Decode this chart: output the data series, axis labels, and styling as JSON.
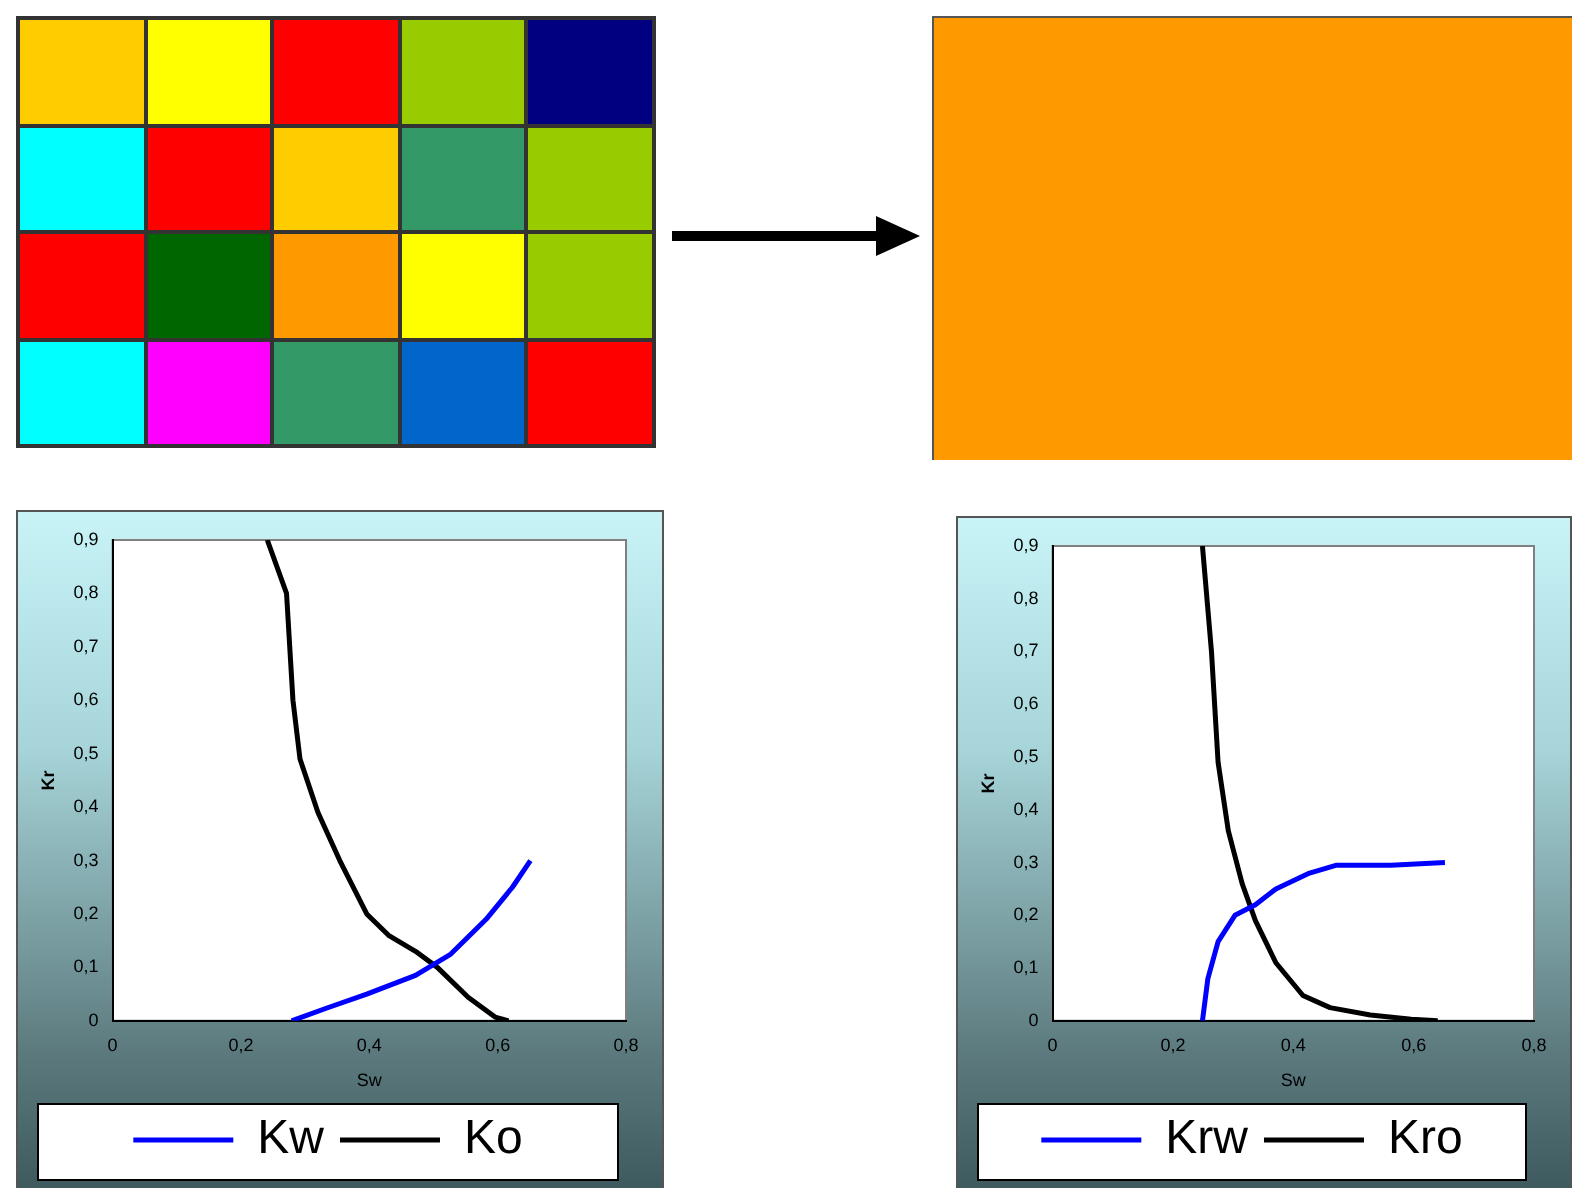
{
  "chart_data": [
    {
      "type": "line",
      "xlabel": "Sw",
      "ylabel": "Kr",
      "xlim": [
        0,
        0.8
      ],
      "ylim": [
        0,
        0.9
      ],
      "xticks": [
        {
          "value": 0,
          "label": "0"
        },
        {
          "value": 0.2,
          "label": "0,2"
        },
        {
          "value": 0.4,
          "label": "0,4"
        },
        {
          "value": 0.6,
          "label": "0,6"
        },
        {
          "value": 0.8,
          "label": "0,8"
        }
      ],
      "yticks": [
        {
          "value": 0,
          "label": "0"
        },
        {
          "value": 0.1,
          "label": "0,1"
        },
        {
          "value": 0.2,
          "label": "0,2"
        },
        {
          "value": 0.3,
          "label": "0,3"
        },
        {
          "value": 0.4,
          "label": "0,4"
        },
        {
          "value": 0.5,
          "label": "0,5"
        },
        {
          "value": 0.6,
          "label": "0,6"
        },
        {
          "value": 0.7,
          "label": "0,7"
        },
        {
          "value": 0.8,
          "label": "0,8"
        },
        {
          "value": 0.9,
          "label": "0,9"
        }
      ],
      "grid": false,
      "legend": "bottom",
      "marker": "none",
      "line_style": "solid",
      "series": [
        {
          "name": "Kw",
          "color": "#0000ff",
          "x": [
            0.279,
            0.334,
            0.396,
            0.472,
            0.527,
            0.582,
            0.623,
            0.651
          ],
          "values": [
            0,
            0.024,
            0.05,
            0.085,
            0.125,
            0.19,
            0.25,
            0.3
          ]
        },
        {
          "name": "Ko",
          "color": "#000000",
          "x": [
            0.241,
            0.271,
            0.281,
            0.292,
            0.32,
            0.354,
            0.396,
            0.43,
            0.472,
            0.506,
            0.554,
            0.596,
            0.617
          ],
          "values": [
            0.9,
            0.8,
            0.6,
            0.49,
            0.39,
            0.3,
            0.2,
            0.16,
            0.13,
            0.1,
            0.044,
            0.007,
            0
          ]
        }
      ]
    },
    {
      "type": "line",
      "xlabel": "Sw",
      "ylabel": "Kr",
      "xlim": [
        0,
        0.8
      ],
      "ylim": [
        0,
        0.9
      ],
      "xticks": [
        {
          "value": 0,
          "label": "0"
        },
        {
          "value": 0.2,
          "label": "0,2"
        },
        {
          "value": 0.4,
          "label": "0,4"
        },
        {
          "value": 0.6,
          "label": "0,6"
        },
        {
          "value": 0.8,
          "label": "0,8"
        }
      ],
      "yticks": [
        {
          "value": 0,
          "label": "0"
        },
        {
          "value": 0.1,
          "label": "0,1"
        },
        {
          "value": 0.2,
          "label": "0,2"
        },
        {
          "value": 0.3,
          "label": "0,3"
        },
        {
          "value": 0.4,
          "label": "0,4"
        },
        {
          "value": 0.5,
          "label": "0,5"
        },
        {
          "value": 0.6,
          "label": "0,6"
        },
        {
          "value": 0.7,
          "label": "0,7"
        },
        {
          "value": 0.8,
          "label": "0,8"
        },
        {
          "value": 0.9,
          "label": "0,9"
        }
      ],
      "grid": false,
      "legend": "bottom",
      "marker": "none",
      "line_style": "solid",
      "series": [
        {
          "name": "Krw",
          "color": "#0000ff",
          "x": [
            0.249,
            0.258,
            0.275,
            0.303,
            0.337,
            0.371,
            0.427,
            0.472,
            0.562,
            0.652
          ],
          "values": [
            0,
            0.08,
            0.15,
            0.2,
            0.22,
            0.25,
            0.28,
            0.295,
            0.295,
            0.3
          ]
        },
        {
          "name": "Kro",
          "color": "#000000",
          "x": [
            0.249,
            0.264,
            0.275,
            0.292,
            0.315,
            0.337,
            0.371,
            0.416,
            0.461,
            0.528,
            0.596,
            0.64
          ],
          "values": [
            0.9,
            0.7,
            0.49,
            0.36,
            0.26,
            0.19,
            0.11,
            0.048,
            0.025,
            0.011,
            0.003,
            0
          ]
        }
      ]
    }
  ]
}
